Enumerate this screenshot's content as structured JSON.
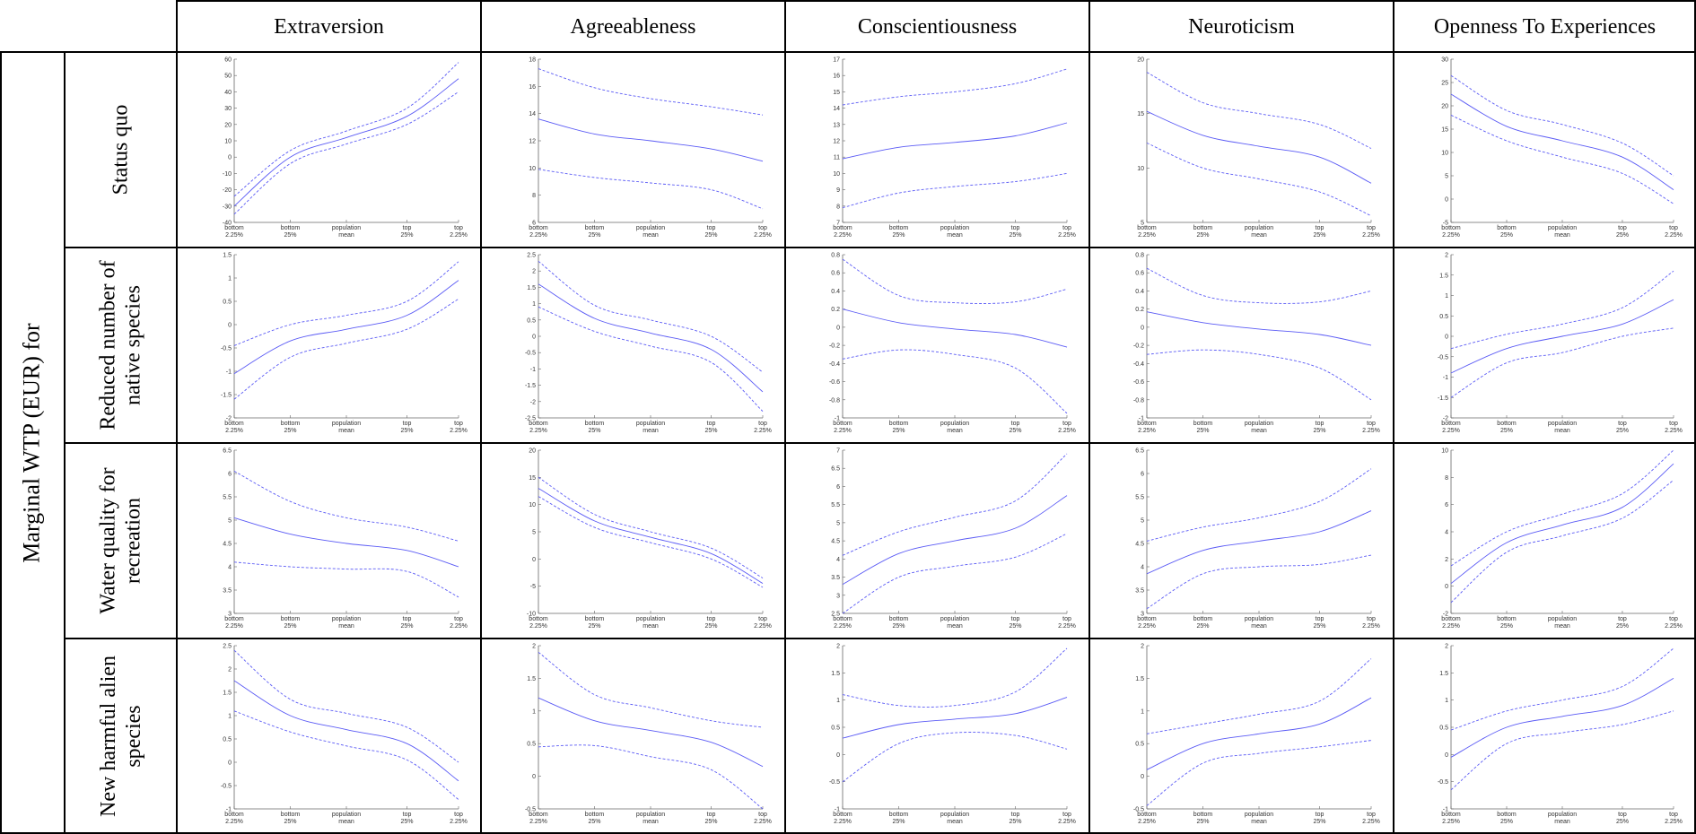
{
  "side_label": "Marginal WTP (EUR) for",
  "columns": [
    "Extraversion",
    "Agreeableness",
    "Conscientiousness",
    "Neuroticism",
    "Openness To Experiences"
  ],
  "rows": [
    [
      "Status quo"
    ],
    [
      "Reduced number of",
      "native species"
    ],
    [
      "Water quality for",
      "recreation"
    ],
    [
      "New harmful alien",
      "species"
    ]
  ],
  "colors": {
    "line": "#5b5bf5",
    "border": "#000000",
    "axis": "#666666"
  },
  "chart_data": {
    "type": "line",
    "x_positions": [
      "bottom 2.25%",
      "bottom 25%",
      "population mean",
      "top 25%",
      "top 2.25%"
    ],
    "x_tick_labels": [
      [
        "bottom",
        "2.25%"
      ],
      [
        "bottom",
        "25%"
      ],
      [
        "population",
        "mean"
      ],
      [
        "top",
        "25%"
      ],
      [
        "top",
        "2.25%"
      ]
    ],
    "panels": [
      [
        {
          "row": "Status quo",
          "column": "Extraversion",
          "ylim": [
            -40,
            60
          ],
          "yticks": [
            "-40",
            "-30",
            "-20",
            "-10",
            "0",
            "10",
            "20",
            "30",
            "40",
            "50",
            "60"
          ],
          "mean": [
            -30,
            0,
            12,
            25,
            48
          ],
          "lower": [
            -35,
            -4,
            8,
            20,
            40
          ],
          "upper": [
            -24,
            4,
            16,
            30,
            58
          ]
        },
        {
          "row": "Status quo",
          "column": "Agreeableness",
          "ylim": [
            6,
            18
          ],
          "yticks": [
            "6",
            "8",
            "10",
            "12",
            "14",
            "16",
            "18"
          ],
          "mean": [
            13.6,
            12.5,
            12,
            11.4,
            10.5
          ],
          "lower": [
            9.9,
            9.3,
            8.9,
            8.4,
            7
          ],
          "upper": [
            17.3,
            15.9,
            15.1,
            14.5,
            13.9
          ]
        },
        {
          "row": "Status quo",
          "column": "Conscientiousness",
          "ylim": [
            7,
            17
          ],
          "yticks": [
            "7",
            "8",
            "9",
            "10",
            "11",
            "12",
            "13",
            "14",
            "15",
            "16",
            "17"
          ],
          "mean": [
            10.9,
            11.6,
            11.9,
            12.3,
            13.1
          ],
          "lower": [
            7.9,
            8.8,
            9.2,
            9.5,
            10
          ],
          "upper": [
            14.2,
            14.7,
            15,
            15.5,
            16.4
          ]
        },
        {
          "row": "Status quo",
          "column": "Neuroticism",
          "ylim": [
            5,
            20
          ],
          "yticks": [
            "5",
            "10",
            "15",
            "20"
          ],
          "mean": [
            15.2,
            13,
            12,
            11,
            8.6
          ],
          "lower": [
            12.3,
            10,
            9,
            7.8,
            5.6
          ],
          "upper": [
            18.8,
            16,
            15,
            14,
            11.8
          ]
        },
        {
          "row": "Status quo",
          "column": "Openness To Experiences",
          "ylim": [
            -5,
            30
          ],
          "yticks": [
            "-5",
            "0",
            "5",
            "10",
            "15",
            "20",
            "25",
            "30"
          ],
          "mean": [
            22.5,
            15.6,
            12.5,
            9,
            2
          ],
          "lower": [
            18,
            12.5,
            9,
            5.5,
            -1
          ],
          "upper": [
            26.5,
            19,
            16,
            12,
            5
          ]
        }
      ],
      [
        {
          "row": "Reduced number of native species",
          "column": "Extraversion",
          "ylim": [
            -2,
            1.5
          ],
          "yticks": [
            "-2",
            "-1.5",
            "-1",
            "-0.5",
            "0",
            "0.5",
            "1",
            "1.5"
          ],
          "mean": [
            -1.05,
            -0.35,
            -0.1,
            0.2,
            0.95
          ],
          "lower": [
            -1.6,
            -0.7,
            -0.4,
            -0.1,
            0.55
          ],
          "upper": [
            -0.45,
            0,
            0.2,
            0.5,
            1.35
          ]
        },
        {
          "row": "Reduced number of native species",
          "column": "Agreeableness",
          "ylim": [
            -2.5,
            2.5
          ],
          "yticks": [
            "-2.5",
            "-2",
            "-1.5",
            "-1",
            "-0.5",
            "0",
            "0.5",
            "1",
            "1.5",
            "2",
            "2.5"
          ],
          "mean": [
            1.6,
            0.55,
            0.1,
            -0.4,
            -1.7
          ],
          "lower": [
            0.9,
            0.15,
            -0.3,
            -0.8,
            -2.3
          ],
          "upper": [
            2.3,
            0.95,
            0.5,
            0,
            -1.1
          ]
        },
        {
          "row": "Reduced number of native species",
          "column": "Conscientiousness",
          "ylim": [
            -1,
            0.8
          ],
          "yticks": [
            "-1",
            "-0.8",
            "-0.6",
            "-0.4",
            "-0.2",
            "0",
            "0.2",
            "0.4",
            "0.6",
            "0.8"
          ],
          "mean": [
            0.2,
            0.05,
            -0.02,
            -0.08,
            -0.22
          ],
          "lower": [
            -0.35,
            -0.25,
            -0.3,
            -0.45,
            -0.95
          ],
          "upper": [
            0.75,
            0.35,
            0.27,
            0.28,
            0.42
          ]
        },
        {
          "row": "Reduced number of native species",
          "column": "Neuroticism",
          "ylim": [
            -1,
            0.8
          ],
          "yticks": [
            "-1",
            "-0.8",
            "-0.6",
            "-0.4",
            "-0.2",
            "0",
            "0.2",
            "0.4",
            "0.6",
            "0.8"
          ],
          "mean": [
            0.17,
            0.05,
            -0.02,
            -0.08,
            -0.2
          ],
          "lower": [
            -0.3,
            -0.25,
            -0.3,
            -0.45,
            -0.8
          ],
          "upper": [
            0.65,
            0.35,
            0.27,
            0.28,
            0.4
          ]
        },
        {
          "row": "Reduced number of native species",
          "column": "Openness To Experiences",
          "ylim": [
            -2,
            2
          ],
          "yticks": [
            "-2",
            "-1.5",
            "-1",
            "-0.5",
            "0",
            "0.5",
            "1",
            "1.5",
            "2"
          ],
          "mean": [
            -0.9,
            -0.3,
            0,
            0.3,
            0.9
          ],
          "lower": [
            -1.5,
            -0.65,
            -0.4,
            0,
            0.2
          ],
          "upper": [
            -0.3,
            0.05,
            0.3,
            0.7,
            1.6
          ]
        }
      ],
      [
        {
          "row": "Water quality for recreation",
          "column": "Extraversion",
          "ylim": [
            3,
            6.5
          ],
          "yticks": [
            "3",
            "3.5",
            "4",
            "4.5",
            "5",
            "5.5",
            "6",
            "6.5"
          ],
          "mean": [
            5.05,
            4.7,
            4.5,
            4.35,
            4
          ],
          "lower": [
            4.1,
            4,
            3.95,
            3.9,
            3.35
          ],
          "upper": [
            6.05,
            5.4,
            5.05,
            4.85,
            4.55
          ]
        },
        {
          "row": "Water quality for recreation",
          "column": "Agreeableness",
          "ylim": [
            -10,
            20
          ],
          "yticks": [
            "-10",
            "-5",
            "0",
            "5",
            "10",
            "15",
            "20"
          ],
          "mean": [
            13,
            7,
            4,
            1,
            -4.5
          ],
          "lower": [
            11.5,
            5.8,
            3,
            0,
            -5.2
          ],
          "upper": [
            15,
            8.2,
            5,
            2,
            -3.5
          ]
        },
        {
          "row": "Water quality for recreation",
          "column": "Conscientiousness",
          "ylim": [
            2.5,
            7
          ],
          "yticks": [
            "2.5",
            "3",
            "3.5",
            "4",
            "4.5",
            "5",
            "5.5",
            "6",
            "6.5",
            "7"
          ],
          "mean": [
            3.3,
            4.15,
            4.5,
            4.85,
            5.75
          ],
          "lower": [
            2.5,
            3.5,
            3.8,
            4.05,
            4.7
          ],
          "upper": [
            4.1,
            4.75,
            5.15,
            5.6,
            6.9
          ]
        },
        {
          "row": "Water quality for recreation",
          "column": "Neuroticism",
          "ylim": [
            3,
            6.5
          ],
          "yticks": [
            "3",
            "3.5",
            "4",
            "4.5",
            "5",
            "5.5",
            "6",
            "6.5"
          ],
          "mean": [
            3.85,
            4.35,
            4.55,
            4.75,
            5.2
          ],
          "lower": [
            3.1,
            3.85,
            4,
            4.05,
            4.25
          ],
          "upper": [
            4.55,
            4.85,
            5.05,
            5.4,
            6.1
          ]
        },
        {
          "row": "Water quality for recreation",
          "column": "Openness To Experiences",
          "ylim": [
            -2,
            10
          ],
          "yticks": [
            "-2",
            "0",
            "2",
            "4",
            "6",
            "8",
            "10"
          ],
          "mean": [
            0.2,
            3.2,
            4.5,
            5.8,
            9
          ],
          "lower": [
            -1.2,
            2.5,
            3.7,
            5,
            7.8
          ],
          "upper": [
            1.5,
            4,
            5.3,
            6.8,
            10
          ]
        }
      ],
      [
        {
          "row": "New harmful alien species",
          "column": "Extraversion",
          "ylim": [
            -1,
            2.5
          ],
          "yticks": [
            "-1",
            "-0.5",
            "0",
            "0.5",
            "1",
            "1.5",
            "2",
            "2.5"
          ],
          "mean": [
            1.75,
            1,
            0.7,
            0.4,
            -0.4
          ],
          "lower": [
            1.1,
            0.65,
            0.35,
            0.05,
            -0.8
          ],
          "upper": [
            2.4,
            1.35,
            1.05,
            0.75,
            0
          ]
        },
        {
          "row": "New harmful alien species",
          "column": "Agreeableness",
          "ylim": [
            -0.5,
            2
          ],
          "yticks": [
            "-0.5",
            "0",
            "0.5",
            "1",
            "1.5",
            "2"
          ],
          "mean": [
            1.2,
            0.85,
            0.7,
            0.52,
            0.15
          ],
          "lower": [
            0.45,
            0.47,
            0.3,
            0.1,
            -0.5
          ],
          "upper": [
            1.9,
            1.25,
            1.05,
            0.85,
            0.75
          ]
        },
        {
          "row": "New harmful alien species",
          "column": "Conscientiousness",
          "ylim": [
            -1,
            2
          ],
          "yticks": [
            "-1",
            "-0.5",
            "0",
            "0.5",
            "1",
            "1.5",
            "2"
          ],
          "mean": [
            0.3,
            0.55,
            0.65,
            0.75,
            1.05
          ],
          "lower": [
            -0.5,
            0.2,
            0.4,
            0.35,
            0.1
          ],
          "upper": [
            1.1,
            0.9,
            0.9,
            1.15,
            1.95
          ]
        },
        {
          "row": "New harmful alien species",
          "column": "Neuroticism",
          "ylim": [
            -0.5,
            2
          ],
          "yticks": [
            "-0.5",
            "0",
            "0.5",
            "1",
            "1.5",
            "2"
          ],
          "mean": [
            0.1,
            0.5,
            0.65,
            0.8,
            1.2
          ],
          "lower": [
            -0.45,
            0.2,
            0.35,
            0.45,
            0.55
          ],
          "upper": [
            0.65,
            0.8,
            0.95,
            1.15,
            1.8
          ]
        },
        {
          "row": "New harmful alien species",
          "column": "Openness To Experiences",
          "ylim": [
            -1,
            2
          ],
          "yticks": [
            "-1",
            "-0.5",
            "0",
            "0.5",
            "1",
            "1.5",
            "2"
          ],
          "mean": [
            -0.05,
            0.5,
            0.7,
            0.9,
            1.4
          ],
          "lower": [
            -0.65,
            0.2,
            0.4,
            0.55,
            0.8
          ],
          "upper": [
            0.45,
            0.8,
            1,
            1.25,
            1.95
          ]
        }
      ]
    ]
  }
}
